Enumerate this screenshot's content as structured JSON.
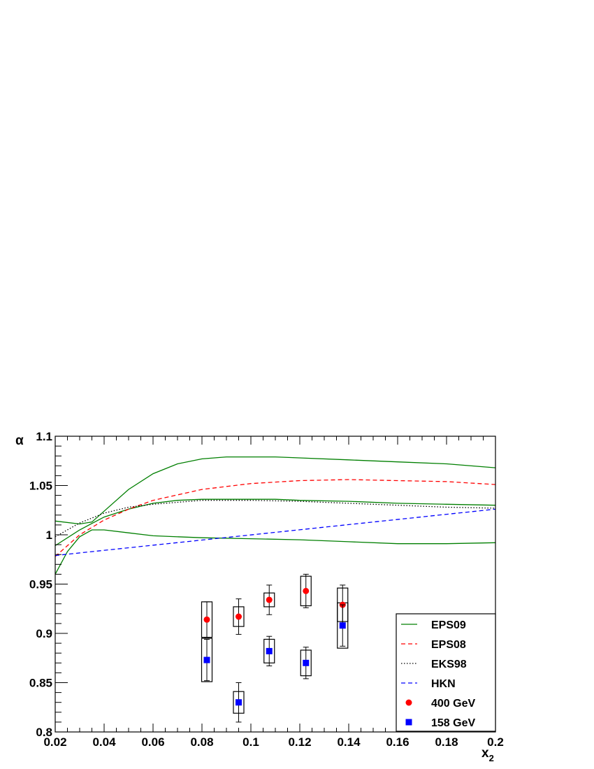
{
  "chart_data": {
    "type": "scatter",
    "xlabel": "x",
    "xlabel_sub": "2",
    "ylabel": "α",
    "xlim": [
      0.02,
      0.2
    ],
    "ylim": [
      0.8,
      1.1
    ],
    "x_ticks": [
      "0.02",
      "0.04",
      "0.06",
      "0.08",
      "0.1",
      "0.12",
      "0.14",
      "0.16",
      "0.18",
      "0.2"
    ],
    "y_ticks": [
      "0.8",
      "0.85",
      "0.9",
      "0.95",
      "1",
      "1.05",
      "1.1"
    ],
    "legend_position": "bottom-right",
    "curves": [
      {
        "name": "EPS09",
        "role": "upper",
        "color": "#007f00",
        "style": "solid",
        "x": [
          0.02,
          0.03,
          0.035,
          0.04,
          0.05,
          0.06,
          0.07,
          0.08,
          0.09,
          0.1,
          0.11,
          0.12,
          0.14,
          0.16,
          0.18,
          0.2
        ],
        "y": [
          1.014,
          1.011,
          1.013,
          1.024,
          1.046,
          1.062,
          1.072,
          1.077,
          1.079,
          1.079,
          1.079,
          1.078,
          1.076,
          1.074,
          1.072,
          1.068
        ]
      },
      {
        "name": "",
        "role": "central",
        "color": "#007f00",
        "style": "solid",
        "x": [
          0.02,
          0.03,
          0.04,
          0.05,
          0.06,
          0.07,
          0.08,
          0.09,
          0.1,
          0.11,
          0.12,
          0.14,
          0.16,
          0.18,
          0.2
        ],
        "y": [
          0.989,
          1.005,
          1.018,
          1.026,
          1.032,
          1.035,
          1.036,
          1.036,
          1.036,
          1.036,
          1.035,
          1.034,
          1.032,
          1.031,
          1.03
        ]
      },
      {
        "name": "",
        "role": "lower",
        "color": "#007f00",
        "style": "solid",
        "x": [
          0.02,
          0.025,
          0.03,
          0.035,
          0.04,
          0.05,
          0.06,
          0.08,
          0.1,
          0.12,
          0.14,
          0.16,
          0.18,
          0.2
        ],
        "y": [
          0.96,
          0.983,
          0.998,
          1.005,
          1.005,
          1.002,
          0.999,
          0.997,
          0.996,
          0.995,
          0.993,
          0.991,
          0.991,
          0.992
        ]
      },
      {
        "name": "EPS08",
        "color": "#ff0000",
        "style": "dashed",
        "x": [
          0.02,
          0.03,
          0.04,
          0.05,
          0.06,
          0.08,
          0.1,
          0.12,
          0.14,
          0.16,
          0.18,
          0.2
        ],
        "y": [
          0.978,
          1.0,
          1.015,
          1.026,
          1.035,
          1.046,
          1.052,
          1.055,
          1.056,
          1.055,
          1.054,
          1.051
        ]
      },
      {
        "name": "EKS98",
        "color": "#000000",
        "style": "dotted",
        "x": [
          0.02,
          0.03,
          0.04,
          0.05,
          0.06,
          0.08,
          0.1,
          0.12,
          0.14,
          0.16,
          0.18,
          0.2
        ],
        "y": [
          0.998,
          1.012,
          1.022,
          1.028,
          1.031,
          1.035,
          1.035,
          1.034,
          1.032,
          1.03,
          1.028,
          1.027
        ]
      },
      {
        "name": "HKN",
        "color": "#0000ff",
        "style": "dashed",
        "x": [
          0.02,
          0.2
        ],
        "y": [
          0.979,
          1.026
        ]
      }
    ],
    "series": [
      {
        "name": "400 GeV",
        "color": "#ff0000",
        "marker": "circle",
        "points": [
          {
            "x": 0.082,
            "y": 0.914,
            "stat_err": 0.018,
            "sys_err": 0.018
          },
          {
            "x": 0.095,
            "y": 0.917,
            "stat_err": 0.018,
            "sys_err": 0.01
          },
          {
            "x": 0.1075,
            "y": 0.934,
            "stat_err": 0.015,
            "sys_err": 0.007
          },
          {
            "x": 0.1225,
            "y": 0.943,
            "stat_err": 0.017,
            "sys_err": 0.015
          },
          {
            "x": 0.1375,
            "y": 0.929,
            "stat_err": 0.02,
            "sys_err": 0.017
          }
        ]
      },
      {
        "name": "158 GeV",
        "color": "#0000ff",
        "marker": "square",
        "points": [
          {
            "x": 0.082,
            "y": 0.873,
            "stat_err": 0.021,
            "sys_err": 0.022
          },
          {
            "x": 0.095,
            "y": 0.83,
            "stat_err": 0.02,
            "sys_err": 0.011
          },
          {
            "x": 0.1075,
            "y": 0.882,
            "stat_err": 0.015,
            "sys_err": 0.012
          },
          {
            "x": 0.1225,
            "y": 0.87,
            "stat_err": 0.016,
            "sys_err": 0.013
          },
          {
            "x": 0.1375,
            "y": 0.908,
            "stat_err": 0.021,
            "sys_err": 0.023
          }
        ]
      }
    ]
  }
}
